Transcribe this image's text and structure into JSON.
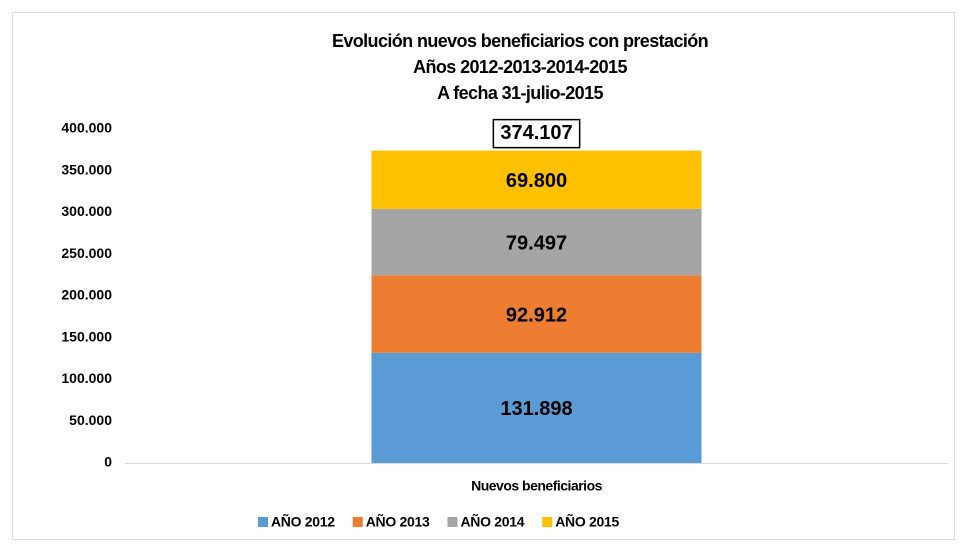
{
  "chart_data": {
    "type": "stacked_bar",
    "title": [
      "Evolución nuevos beneficiarios con prestación",
      "Años 2012-2013-2014-2015",
      "A fecha 31-julio-2015"
    ],
    "categories": [
      "Nuevos beneficiarios"
    ],
    "series": [
      {
        "name": "AÑO 2012",
        "color": "#5B9BD5",
        "label_color": "#ffffff",
        "values": [
          131898
        ],
        "value_labels": [
          "131.898"
        ]
      },
      {
        "name": "AÑO 2013",
        "color": "#ED7D31",
        "label_color": "#000000",
        "values": [
          92912
        ],
        "value_labels": [
          "92.912"
        ]
      },
      {
        "name": "AÑO 2014",
        "color": "#A5A5A5",
        "label_color": "#000000",
        "values": [
          79497
        ],
        "value_labels": [
          "79.497"
        ]
      },
      {
        "name": "AÑO 2015",
        "color": "#FFC000",
        "label_color": "#000000",
        "values": [
          69800
        ],
        "value_labels": [
          "69.800"
        ]
      }
    ],
    "total": {
      "value": 374107,
      "label": "374.107"
    },
    "ylim": [
      0,
      400000
    ],
    "yticks": [
      0,
      {
        "value": 50000,
        "label": "50.000"
      },
      {
        "value": 100000,
        "label": "100.000"
      },
      {
        "value": 150000,
        "label": "150.000"
      },
      {
        "value": 200000,
        "label": "200.000"
      },
      {
        "value": 250000,
        "label": "250.000"
      },
      {
        "value": 300000,
        "label": "300.000"
      },
      {
        "value": 350000,
        "label": "350.000"
      },
      {
        "value": 400000,
        "label": "400.000"
      }
    ],
    "grid": false,
    "legend": "bottom"
  }
}
